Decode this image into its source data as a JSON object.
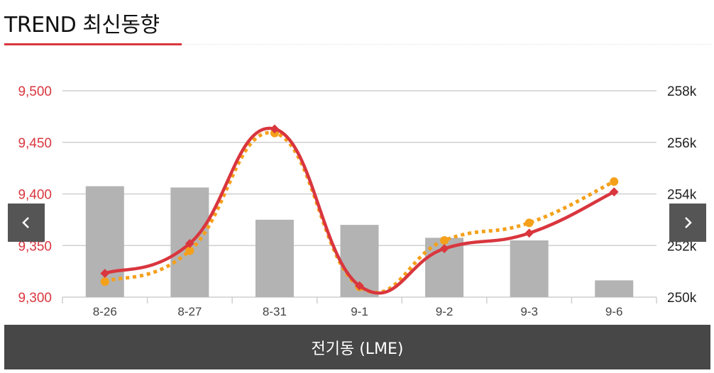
{
  "page": {
    "title": "TREND 최신동향",
    "footer_label": "전기동 (LME)",
    "nav": {
      "prev_icon": "chevron-left-icon",
      "next_icon": "chevron-right-icon"
    }
  },
  "colors": {
    "accent": "#d9363e",
    "line_dotted": "#f5a01a",
    "bars": "#b3b3b3",
    "footer": "#474747",
    "nav": "#555555"
  },
  "chart_data": {
    "type": "bar+line",
    "categories": [
      "8-26",
      "8-27",
      "8-31",
      "9-1",
      "9-2",
      "9-3",
      "9-6"
    ],
    "y_left": {
      "min": 9300,
      "max": 9500,
      "ticks": [
        "9,300",
        "9,350",
        "9,400",
        "9,450",
        "9,500"
      ]
    },
    "y_right": {
      "min": 250,
      "max": 258,
      "ticks": [
        "250k",
        "252k",
        "254k",
        "256k",
        "258k"
      ]
    },
    "series": [
      {
        "type": "bar",
        "axis": "right",
        "unit": "k",
        "values": [
          254.3,
          254.25,
          253.0,
          252.8,
          252.3,
          252.2,
          250.65
        ]
      },
      {
        "type": "line",
        "axis": "left",
        "style": "solid-smooth",
        "values": [
          9323,
          9352,
          9463,
          9311,
          9347,
          9362,
          9402
        ]
      },
      {
        "type": "line",
        "axis": "left",
        "style": "dotted",
        "values": [
          9315,
          9345,
          9459,
          9310,
          9355,
          9372,
          9412
        ]
      }
    ],
    "grid": true,
    "legend": "none"
  }
}
